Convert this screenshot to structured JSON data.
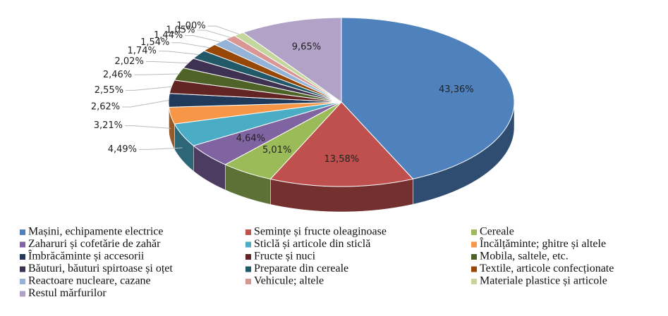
{
  "chart_data": {
    "type": "pie3d",
    "categories": [
      "Mașini, echipamente electrice",
      "Semințe și fructe oleaginoase",
      "Cereale",
      "Zaharuri și cofetărie de zahăr",
      "Sticlă și articole din sticlă",
      "Încălțăminte; ghitre și altele",
      "Îmbrăcăminte și accesorii",
      "Fructe și nuci",
      "Mobila, saltele, etc.",
      "Băuturi, băuturi spirtoase și oțet",
      "Preparate din cereale",
      "Textile, articole confecționate",
      "Reactoare nucleare, cazane",
      "Vehicule; altele",
      "Materiale plastice și articole",
      "Restul mărfurilor"
    ],
    "values": [
      43.36,
      13.58,
      5.01,
      4.64,
      4.49,
      3.21,
      2.62,
      2.55,
      2.46,
      2.02,
      1.74,
      1.54,
      1.44,
      1.05,
      1.0,
      9.65
    ],
    "value_labels": [
      "43,36%",
      "13,58%",
      "5,01%",
      "4,64%",
      "4,49%",
      "3,21%",
      "2,62%",
      "2,55%",
      "2,46%",
      "2,02%",
      "1,74%",
      "1,54%",
      "1,44%",
      "1,05%",
      "1,00%",
      "9,65%"
    ],
    "colors": [
      "#4f81bd",
      "#c0504d",
      "#9bbb59",
      "#8064a2",
      "#4bacc6",
      "#f79646",
      "#1f3a5a",
      "#632523",
      "#4f6228",
      "#3f3151",
      "#215968",
      "#974806",
      "#95b3d7",
      "#d99694",
      "#c3d69b",
      "#b3a2c7"
    ]
  }
}
